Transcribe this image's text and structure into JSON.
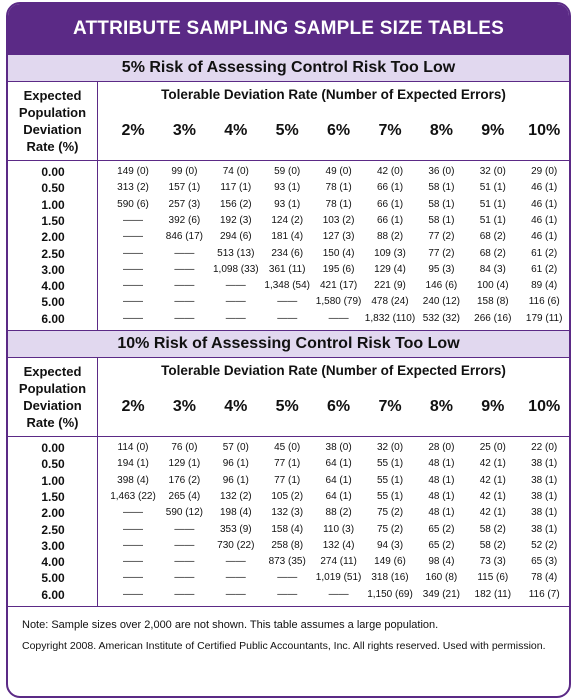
{
  "title": "ATTRIBUTE SAMPLING SAMPLE SIZE TABLES",
  "header": {
    "row_label": "Expected Population Deviation Rate (%)",
    "col_label": "Tolerable Deviation Rate (Number of Expected Errors)",
    "rates": [
      "2%",
      "3%",
      "4%",
      "5%",
      "6%",
      "7%",
      "8%",
      "9%",
      "10%"
    ]
  },
  "sections": [
    {
      "title": "5% Risk of Assessing Control Risk Too Low",
      "rows": [
        {
          "label": "0.00",
          "cells": [
            "149 (0)",
            "99 (0)",
            "74 (0)",
            "59 (0)",
            "49 (0)",
            "42 (0)",
            "36 (0)",
            "32 (0)",
            "29 (0)"
          ]
        },
        {
          "label": "0.50",
          "cells": [
            "313 (2)",
            "157 (1)",
            "117 (1)",
            "93 (1)",
            "78 (1)",
            "66 (1)",
            "58 (1)",
            "51 (1)",
            "46 (1)"
          ]
        },
        {
          "label": "1.00",
          "cells": [
            "590 (6)",
            "257 (3)",
            "156 (2)",
            "93 (1)",
            "78 (1)",
            "66 (1)",
            "58 (1)",
            "51 (1)",
            "46 (1)"
          ]
        },
        {
          "label": "1.50",
          "cells": [
            "——",
            "392 (6)",
            "192 (3)",
            "124 (2)",
            "103 (2)",
            "66 (1)",
            "58 (1)",
            "51 (1)",
            "46 (1)"
          ]
        },
        {
          "label": "2.00",
          "cells": [
            "——",
            "846 (17)",
            "294 (6)",
            "181 (4)",
            "127 (3)",
            "88 (2)",
            "77 (2)",
            "68 (2)",
            "46 (1)"
          ]
        },
        {
          "label": "2.50",
          "cells": [
            "——",
            "——",
            "513 (13)",
            "234 (6)",
            "150 (4)",
            "109 (3)",
            "77 (2)",
            "68 (2)",
            "61 (2)"
          ]
        },
        {
          "label": "3.00",
          "cells": [
            "——",
            "——",
            "1,098 (33)",
            "361 (11)",
            "195 (6)",
            "129 (4)",
            "95 (3)",
            "84 (3)",
            "61 (2)"
          ]
        },
        {
          "label": "4.00",
          "cells": [
            "——",
            "——",
            "——",
            "1,348 (54)",
            "421 (17)",
            "221 (9)",
            "146 (6)",
            "100 (4)",
            "89 (4)"
          ]
        },
        {
          "label": "5.00",
          "cells": [
            "——",
            "——",
            "——",
            "——",
            "1,580 (79)",
            "478 (24)",
            "240 (12)",
            "158 (8)",
            "116 (6)"
          ]
        },
        {
          "label": "6.00",
          "cells": [
            "——",
            "——",
            "——",
            "——",
            "——",
            "1,832 (110)",
            "532 (32)",
            "266 (16)",
            "179 (11)"
          ]
        }
      ]
    },
    {
      "title": "10% Risk of Assessing Control Risk Too Low",
      "rows": [
        {
          "label": "0.00",
          "cells": [
            "114 (0)",
            "76 (0)",
            "57 (0)",
            "45 (0)",
            "38 (0)",
            "32 (0)",
            "28 (0)",
            "25 (0)",
            "22 (0)"
          ]
        },
        {
          "label": "0.50",
          "cells": [
            "194 (1)",
            "129 (1)",
            "96 (1)",
            "77 (1)",
            "64 (1)",
            "55 (1)",
            "48 (1)",
            "42 (1)",
            "38 (1)"
          ]
        },
        {
          "label": "1.00",
          "cells": [
            "398 (4)",
            "176 (2)",
            "96 (1)",
            "77 (1)",
            "64 (1)",
            "55 (1)",
            "48 (1)",
            "42 (1)",
            "38 (1)"
          ]
        },
        {
          "label": "1.50",
          "cells": [
            "1,463 (22)",
            "265 (4)",
            "132 (2)",
            "105 (2)",
            "64 (1)",
            "55 (1)",
            "48 (1)",
            "42 (1)",
            "38 (1)"
          ]
        },
        {
          "label": "2.00",
          "cells": [
            "——",
            "590 (12)",
            "198 (4)",
            "132 (3)",
            "88 (2)",
            "75 (2)",
            "48 (1)",
            "42 (1)",
            "38 (1)"
          ]
        },
        {
          "label": "2.50",
          "cells": [
            "——",
            "——",
            "353 (9)",
            "158 (4)",
            "110 (3)",
            "75 (2)",
            "65 (2)",
            "58 (2)",
            "38 (1)"
          ]
        },
        {
          "label": "3.00",
          "cells": [
            "——",
            "——",
            "730 (22)",
            "258 (8)",
            "132 (4)",
            "94 (3)",
            "65 (2)",
            "58 (2)",
            "52 (2)"
          ]
        },
        {
          "label": "4.00",
          "cells": [
            "——",
            "——",
            "——",
            "873 (35)",
            "274 (11)",
            "149 (6)",
            "98 (4)",
            "73 (3)",
            "65 (3)"
          ]
        },
        {
          "label": "5.00",
          "cells": [
            "——",
            "——",
            "——",
            "——",
            "1,019 (51)",
            "318 (16)",
            "160 (8)",
            "115 (6)",
            "78 (4)"
          ]
        },
        {
          "label": "6.00",
          "cells": [
            "——",
            "——",
            "——",
            "——",
            "——",
            "1,150 (69)",
            "349 (21)",
            "182 (11)",
            "116 (7)"
          ]
        }
      ]
    }
  ],
  "note": "Note: Sample sizes over 2,000 are not shown. This table assumes a large population.",
  "copyright": "Copyright 2008. American Institute of Certified Public Accountants, Inc. All rights reserved. Used with permission."
}
